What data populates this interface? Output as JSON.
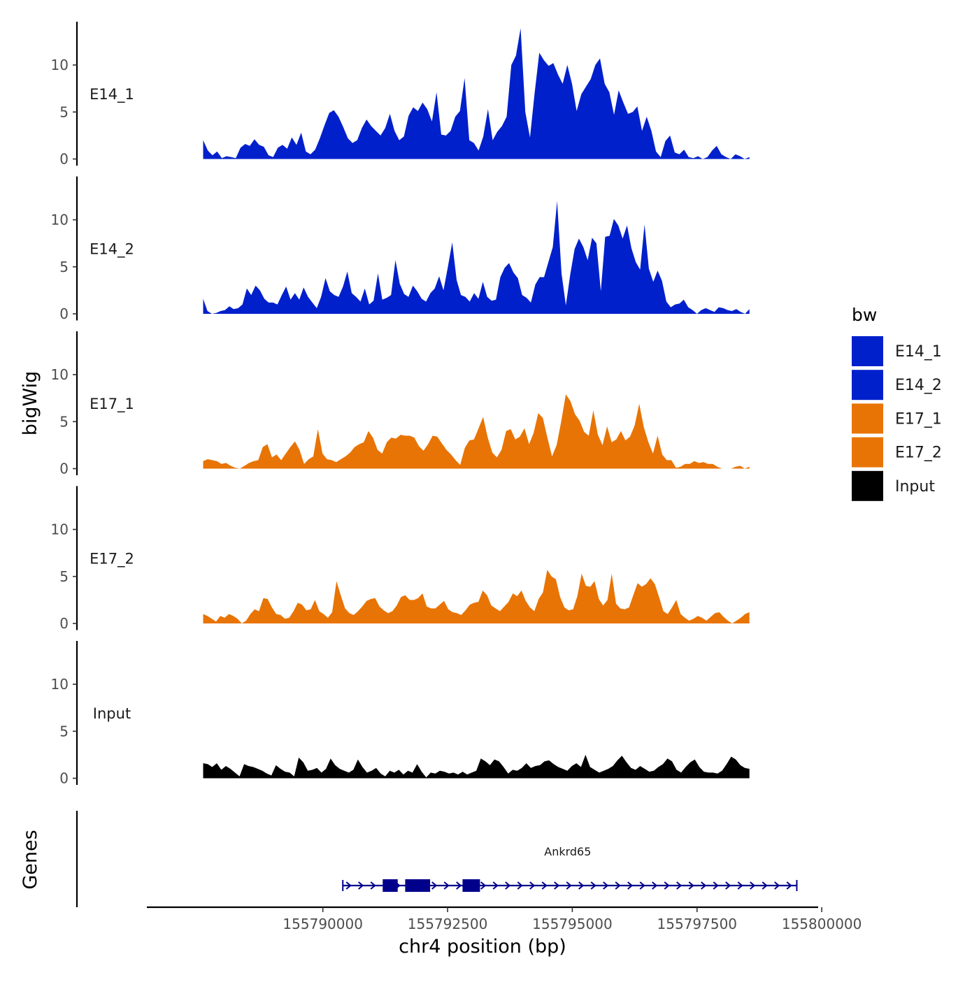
{
  "chart_data": {
    "type": "area",
    "xlabel": "chr4 position (bp)",
    "ylabel": "bigWig",
    "genes_label": "Genes",
    "xlim": [
      155786500,
      155799900
    ],
    "ylim": [
      0,
      14.5
    ],
    "x_ticks": [
      155790000,
      155792500,
      155795000,
      155797500,
      155800000
    ],
    "x_tick_labels": [
      "155790000",
      "155792500",
      "155795000",
      "155797500",
      "155800000"
    ],
    "y_ticks": [
      0,
      5,
      10
    ],
    "y_tick_labels": [
      "0",
      "5",
      "10"
    ],
    "track_x_range": [
      155787600,
      155798550
    ],
    "legend": {
      "title": "bw",
      "entries": [
        {
          "label": "E14_1",
          "color": "#0020CC"
        },
        {
          "label": "E14_2",
          "color": "#0020CC"
        },
        {
          "label": "E17_1",
          "color": "#E87405"
        },
        {
          "label": "E17_2",
          "color": "#E87405"
        },
        {
          "label": "Input",
          "color": "#000000"
        }
      ]
    },
    "series": [
      {
        "name": "E14_1",
        "color": "#0020CC",
        "values": [
          2.0,
          0.9,
          0.4,
          0.8,
          0.1,
          0.3,
          0.2,
          0.1,
          1.2,
          1.6,
          1.4,
          2.1,
          1.5,
          1.3,
          0.4,
          0.2,
          1.2,
          1.5,
          1.1,
          2.3,
          1.5,
          2.8,
          0.8,
          0.5,
          1.0,
          2.2,
          3.6,
          4.9,
          5.2,
          4.5,
          3.4,
          2.2,
          1.7,
          2.0,
          3.3,
          4.2,
          3.5,
          3.0,
          2.5,
          3.3,
          4.8,
          3.0,
          2.0,
          2.4,
          4.6,
          5.5,
          5.1,
          6.0,
          5.3,
          4.0,
          7.1,
          2.6,
          2.5,
          3.0,
          4.5,
          5.1,
          8.6,
          2.0,
          1.7,
          0.9,
          2.4,
          5.3,
          2.0,
          2.9,
          3.5,
          4.5,
          10.0,
          11.0,
          13.9,
          5.0,
          2.3,
          7.0,
          11.3,
          10.5,
          9.9,
          10.2,
          9.0,
          8.0,
          10.0,
          8.0,
          5.1,
          6.9,
          7.7,
          8.5,
          10.0,
          10.7,
          8.0,
          7.1,
          4.7,
          7.3,
          6.0,
          4.8,
          5.0,
          5.6,
          3.0,
          4.5,
          3.0,
          0.8,
          0.2,
          1.9,
          2.5,
          0.7,
          0.5,
          1.0,
          0.2,
          0.1,
          0.3,
          0.0,
          0.2,
          0.9,
          1.4,
          0.5,
          0.2,
          0.0,
          0.5,
          0.3,
          0.0,
          0.2
        ]
      },
      {
        "name": "E14_2",
        "color": "#0020CC",
        "values": [
          1.6,
          0.3,
          0.0,
          0.1,
          0.3,
          0.4,
          0.8,
          0.5,
          0.6,
          1.0,
          2.7,
          2.0,
          3.0,
          2.5,
          1.6,
          1.2,
          1.2,
          1.0,
          2.0,
          2.9,
          1.5,
          2.2,
          1.5,
          2.8,
          1.8,
          1.2,
          0.6,
          1.8,
          3.8,
          2.4,
          2.0,
          1.8,
          2.9,
          4.5,
          2.2,
          1.8,
          1.3,
          2.7,
          1.0,
          1.4,
          4.3,
          1.5,
          1.7,
          2.0,
          5.7,
          3.2,
          2.1,
          1.8,
          3.0,
          2.4,
          1.6,
          1.3,
          2.2,
          2.7,
          4.0,
          2.5,
          5.0,
          7.6,
          3.6,
          2.0,
          1.8,
          1.3,
          2.2,
          1.6,
          3.4,
          1.8,
          1.4,
          1.5,
          3.9,
          4.9,
          5.4,
          4.4,
          3.8,
          2.0,
          1.7,
          1.2,
          3.1,
          3.9,
          3.9,
          5.5,
          7.1,
          12.0,
          4.3,
          0.9,
          4.2,
          6.9,
          8.0,
          7.1,
          5.7,
          8.1,
          7.5,
          2.4,
          8.2,
          8.3,
          10.1,
          9.4,
          8.0,
          9.4,
          7.0,
          5.5,
          4.7,
          9.5,
          4.8,
          3.4,
          4.6,
          3.5,
          1.3,
          0.7,
          1.0,
          1.1,
          1.5,
          0.7,
          0.4,
          0.0,
          0.4,
          0.6,
          0.4,
          0.2,
          0.7,
          0.6,
          0.4,
          0.3,
          0.5,
          0.2,
          0.0,
          0.5
        ]
      },
      {
        "name": "E17_1",
        "color": "#E87405",
        "values": [
          0.8,
          1.0,
          0.9,
          0.8,
          0.5,
          0.6,
          0.3,
          0.1,
          0.0,
          0.3,
          0.6,
          0.8,
          0.9,
          2.3,
          2.6,
          1.2,
          1.5,
          0.9,
          1.6,
          2.3,
          2.9,
          2.0,
          0.5,
          1.0,
          1.3,
          4.2,
          1.6,
          1.0,
          0.9,
          0.7,
          1.0,
          1.3,
          1.7,
          2.3,
          2.6,
          2.8,
          4.0,
          3.3,
          2.0,
          1.6,
          2.8,
          3.3,
          3.2,
          3.6,
          3.5,
          3.5,
          3.3,
          2.4,
          1.9,
          2.6,
          3.5,
          3.4,
          2.7,
          2.0,
          1.5,
          0.9,
          0.4,
          2.2,
          3.0,
          3.1,
          4.3,
          5.5,
          3.3,
          1.7,
          1.2,
          2.0,
          4.0,
          4.2,
          3.1,
          3.4,
          4.3,
          2.6,
          3.8,
          5.9,
          5.4,
          3.3,
          1.3,
          2.5,
          5.0,
          7.9,
          7.2,
          5.8,
          5.1,
          3.9,
          3.5,
          6.2,
          3.6,
          2.5,
          4.5,
          2.8,
          3.1,
          4.0,
          3.0,
          3.4,
          4.6,
          6.9,
          4.4,
          2.8,
          1.6,
          3.5,
          1.5,
          0.9,
          0.9,
          0.1,
          0.2,
          0.5,
          0.5,
          0.8,
          0.6,
          0.7,
          0.5,
          0.5,
          0.2,
          0.0,
          0.0,
          0.0,
          0.2,
          0.3,
          0.0,
          0.2
        ]
      },
      {
        "name": "E17_2",
        "color": "#E87405",
        "values": [
          1.0,
          0.8,
          0.5,
          0.2,
          0.8,
          0.6,
          1.0,
          0.8,
          0.5,
          0.0,
          0.3,
          1.0,
          1.5,
          1.3,
          2.7,
          2.6,
          1.7,
          1.0,
          0.9,
          0.5,
          0.6,
          1.3,
          2.2,
          2.0,
          1.4,
          1.5,
          2.5,
          1.3,
          1.0,
          0.6,
          1.2,
          4.5,
          3.0,
          1.6,
          1.1,
          0.9,
          1.3,
          1.8,
          2.4,
          2.6,
          2.7,
          1.8,
          1.4,
          1.1,
          1.3,
          1.9,
          2.8,
          3.0,
          2.5,
          2.5,
          2.7,
          3.2,
          1.8,
          1.6,
          1.6,
          2.0,
          2.4,
          1.5,
          1.2,
          1.1,
          0.9,
          1.4,
          2.0,
          2.2,
          2.3,
          3.5,
          3.0,
          1.9,
          1.6,
          1.3,
          1.8,
          2.3,
          3.2,
          2.9,
          3.5,
          2.4,
          1.7,
          1.3,
          2.6,
          3.3,
          5.7,
          5.0,
          4.7,
          2.8,
          1.7,
          1.4,
          1.5,
          2.9,
          5.3,
          4.0,
          3.9,
          4.5,
          2.6,
          1.9,
          2.5,
          5.3,
          2.1,
          1.6,
          1.5,
          1.7,
          3.0,
          4.3,
          3.9,
          4.2,
          4.8,
          4.2,
          2.8,
          1.3,
          1.0,
          1.7,
          2.5,
          1.0,
          0.6,
          0.3,
          0.5,
          0.8,
          0.6,
          0.3,
          0.7,
          1.1,
          1.2,
          0.7,
          0.3,
          0.0,
          0.3,
          0.6,
          1.0,
          1.2
        ]
      },
      {
        "name": "Input",
        "color": "#000000",
        "values": [
          1.6,
          1.5,
          1.2,
          1.6,
          0.9,
          1.3,
          1.0,
          0.6,
          0.2,
          1.5,
          1.3,
          1.2,
          1.0,
          0.8,
          0.5,
          0.3,
          1.4,
          1.0,
          0.7,
          0.6,
          0.2,
          2.2,
          1.7,
          0.8,
          0.9,
          1.1,
          0.6,
          1.0,
          2.1,
          1.4,
          1.0,
          0.8,
          0.6,
          0.9,
          2.0,
          1.2,
          0.6,
          0.8,
          1.1,
          0.5,
          0.2,
          0.8,
          0.6,
          0.9,
          0.4,
          0.8,
          0.6,
          1.5,
          0.7,
          0.1,
          0.6,
          0.5,
          0.8,
          0.7,
          0.5,
          0.6,
          0.4,
          0.7,
          0.4,
          0.6,
          0.8,
          2.1,
          1.8,
          1.4,
          2.0,
          1.8,
          1.2,
          0.5,
          0.9,
          0.8,
          1.1,
          1.6,
          1.1,
          1.3,
          1.4,
          1.8,
          1.9,
          1.5,
          1.2,
          1.0,
          0.8,
          1.3,
          1.6,
          1.2,
          2.5,
          1.2,
          0.9,
          0.6,
          0.8,
          1.0,
          1.3,
          1.9,
          2.4,
          1.7,
          1.1,
          0.9,
          1.3,
          1.0,
          0.7,
          0.8,
          1.2,
          1.5,
          2.1,
          1.8,
          0.9,
          0.6,
          1.2,
          1.7,
          2.0,
          1.2,
          0.7,
          0.6,
          0.6,
          0.5,
          0.8,
          1.5,
          2.3,
          2.0,
          1.4,
          1.1,
          1.0
        ]
      }
    ],
    "gene": {
      "name": "Ankrd65",
      "strand": "+",
      "start": 155790400,
      "end": 155799500,
      "exons": [
        [
          155791200,
          155791500
        ],
        [
          155791650,
          155792150
        ],
        [
          155792800,
          155793150
        ]
      ],
      "color": "#00008B"
    }
  }
}
